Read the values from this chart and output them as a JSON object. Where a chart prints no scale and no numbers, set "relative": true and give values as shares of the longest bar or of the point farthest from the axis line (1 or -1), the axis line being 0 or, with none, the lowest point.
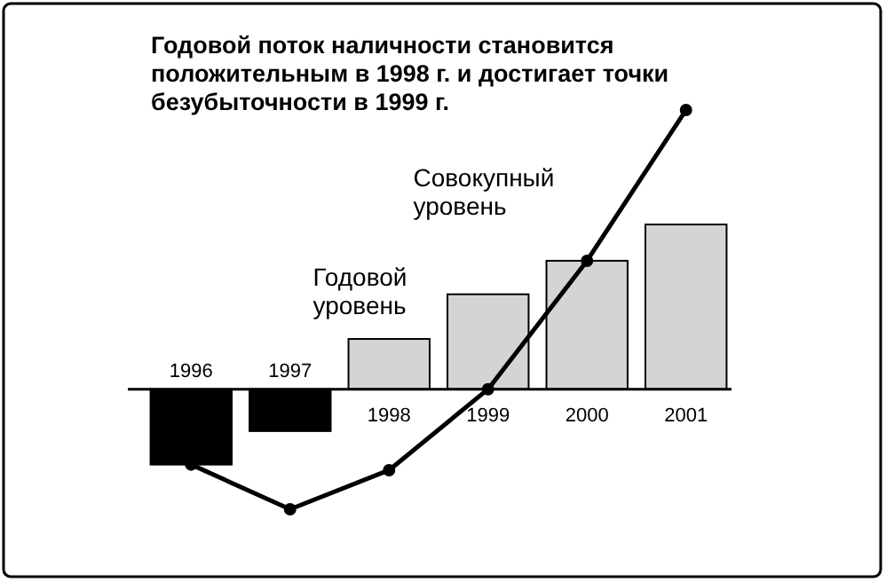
{
  "chart_data": {
    "type": "bar",
    "title": "Годовой поток наличности становится положительным в 1998 г. и достигает точки безубыточности в 1999 г.",
    "relative": true,
    "categories": [
      "1996",
      "1997",
      "1998",
      "1999",
      "2000",
      "2001"
    ],
    "marker": "circle",
    "series": [
      {
        "name": "Годовой уровень",
        "colors": [
          "#000000",
          "#000000",
          "#d4d4d4",
          "#d4d4d4",
          "#d4d4d4",
          "#d4d4d4"
        ],
        "values": [
          -0.27,
          -0.15,
          0.18,
          0.34,
          0.46,
          0.59
        ]
      },
      {
        "name": "Совокупный уровень",
        "type": "line",
        "color": "#000000",
        "values": [
          -0.27,
          -0.43,
          -0.29,
          0,
          0.46,
          1
        ]
      }
    ]
  }
}
